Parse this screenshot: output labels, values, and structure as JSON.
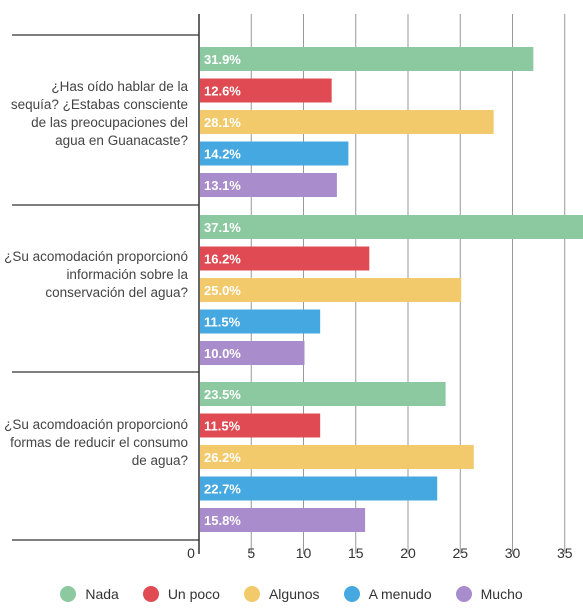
{
  "chart_data": {
    "type": "bar",
    "orientation": "horizontal",
    "xlim": [
      0,
      35
    ],
    "x_ticks": [
      0,
      5,
      10,
      15,
      20,
      25,
      30,
      35
    ],
    "grid": true,
    "legend_position": "bottom",
    "series": [
      {
        "name": "Nada",
        "color": "#8cc9a0"
      },
      {
        "name": "Un poco",
        "color": "#e04b53"
      },
      {
        "name": "Algunos",
        "color": "#f2c96b"
      },
      {
        "name": "A menudo",
        "color": "#46a8e0"
      },
      {
        "name": "Mucho",
        "color": "#a98ccb"
      }
    ],
    "groups": [
      {
        "label": "¿Has oído hablar de la sequía? ¿Estabas consciente de las preocupaciones del agua en Guanacaste?",
        "values": [
          31.9,
          12.6,
          28.1,
          14.2,
          13.1
        ],
        "data_labels": [
          "31.9%",
          "12.6%",
          "28.1%",
          "14.2%",
          "13.1%"
        ]
      },
      {
        "label": "¿Su acomodación proporcionó información sobre la conservación del agua?",
        "values": [
          37.1,
          16.2,
          25.0,
          11.5,
          10.0
        ],
        "data_labels": [
          "37.1%",
          "16.2%",
          "25.0%",
          "11.5%",
          "10.0%"
        ]
      },
      {
        "label": "¿Su acomdoación proporcionó formas de reducir el consumo de agua?",
        "values": [
          23.5,
          11.5,
          26.2,
          22.7,
          15.8
        ],
        "data_labels": [
          "23.5%",
          "11.5%",
          "26.2%",
          "22.7%",
          "15.8%"
        ]
      }
    ]
  }
}
